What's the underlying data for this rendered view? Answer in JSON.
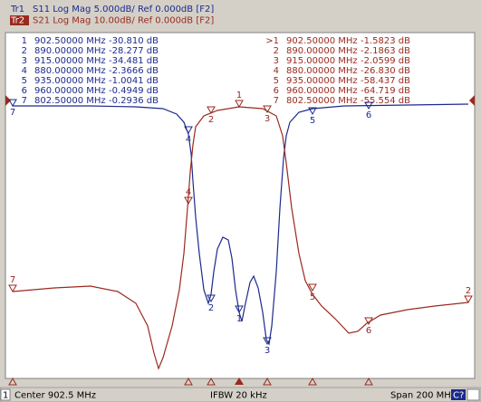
{
  "header": {
    "tr1": {
      "id": "Tr1",
      "text": "S11 Log Mag 5.000dB/ Ref 0.000dB [F2]"
    },
    "tr2": {
      "id": "Tr2",
      "text": "S21 Log Mag 10.00dB/ Ref 0.000dB [F2]"
    }
  },
  "markers_tr1": [
    {
      "num": "1",
      "freq": "902.50000 MHz",
      "value": "-30.810 dB"
    },
    {
      "num": "2",
      "freq": "890.00000 MHz",
      "value": "-28.277 dB"
    },
    {
      "num": "3",
      "freq": "915.00000 MHz",
      "value": "-34.481 dB"
    },
    {
      "num": "4",
      "freq": "880.00000 MHz",
      "value": "-2.3666 dB"
    },
    {
      "num": "5",
      "freq": "935.00000 MHz",
      "value": "-1.0041 dB"
    },
    {
      "num": "6",
      "freq": "960.00000 MHz",
      "value": "-0.4949 dB"
    },
    {
      "num": "7",
      "freq": "802.50000 MHz",
      "value": "-0.2936 dB"
    }
  ],
  "markers_tr2": [
    {
      "num": ">1",
      "freq": "902.50000 MHz",
      "value": "-1.5823 dB"
    },
    {
      "num": "2",
      "freq": "890.00000 MHz",
      "value": "-2.1863 dB"
    },
    {
      "num": "3",
      "freq": "915.00000 MHz",
      "value": "-2.0599 dB"
    },
    {
      "num": "4",
      "freq": "880.00000 MHz",
      "value": "-26.830 dB"
    },
    {
      "num": "5",
      "freq": "935.00000 MHz",
      "value": "-58.437 dB"
    },
    {
      "num": "6",
      "freq": "960.00000 MHz",
      "value": "-64.719 dB"
    },
    {
      "num": "7",
      "freq": "802.50000 MHz",
      "value": "-55.554 dB"
    }
  ],
  "plot_labels": {
    "tr1": [
      "1",
      "2",
      "3",
      "4",
      "5",
      "6",
      "7"
    ],
    "tr2": [
      "1",
      "2",
      "3",
      "4",
      "5",
      "6",
      "7",
      "2"
    ]
  },
  "footer": {
    "channel": "1",
    "center": "Center 902.5 MHz",
    "ifbw": "IFBW 20 kHz",
    "span": "Span 200 MHz",
    "cal": "C?"
  }
}
